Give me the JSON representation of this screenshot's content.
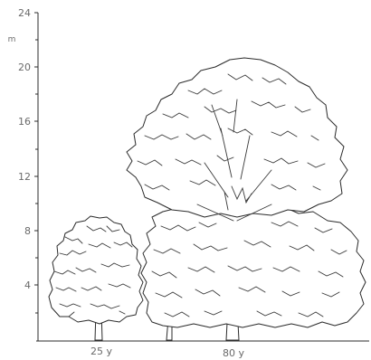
{
  "axis": {
    "unit": "m",
    "ticks": [
      "4",
      "8",
      "12",
      "16",
      "20",
      "24"
    ]
  },
  "trees": [
    {
      "label": "25 y",
      "height_m": 8.9
    },
    {
      "label": "80 y",
      "height_m": 20.6
    }
  ],
  "colors": {
    "line": "#2b2b2b",
    "text": "#6a6a6a",
    "background": "#ffffff"
  }
}
